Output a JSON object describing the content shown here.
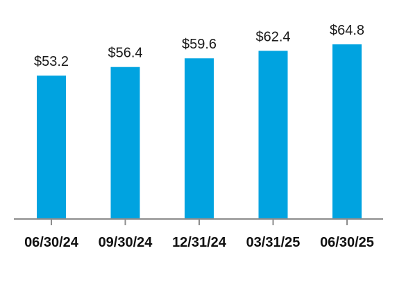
{
  "chart_data": {
    "type": "bar",
    "categories": [
      "06/30/24",
      "09/30/24",
      "12/31/24",
      "03/31/25",
      "06/30/25"
    ],
    "values": [
      53.2,
      56.4,
      59.6,
      62.4,
      64.8
    ],
    "data_labels": [
      "$53.2",
      "$56.4",
      "$59.6",
      "$62.4",
      "$64.8"
    ],
    "title": "",
    "xlabel": "",
    "ylabel": "",
    "ylim": [
      0,
      70
    ],
    "grid": false,
    "legend": "none",
    "colors": {
      "bar": "#00A3E0",
      "axis": "#8c8c8c",
      "text": "#111111"
    }
  }
}
